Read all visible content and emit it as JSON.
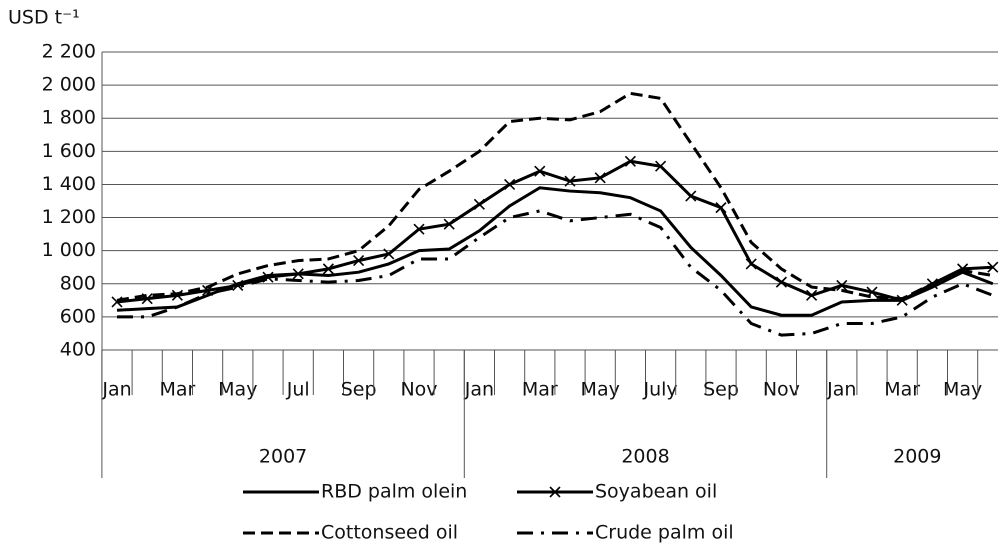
{
  "chart_data": {
    "type": "line",
    "y_label": "USD t⁻¹",
    "categories": [
      "Jan",
      null,
      "Mar",
      null,
      "May",
      null,
      "Jul",
      null,
      "Sep",
      null,
      "Nov",
      null,
      "Jan",
      null,
      "Mar",
      null,
      "May",
      null,
      "July",
      null,
      "Sep",
      null,
      "Nov",
      null,
      "Jan",
      null,
      "Mar",
      null,
      "May",
      null
    ],
    "year_groups": [
      {
        "label": "2007",
        "count": 12
      },
      {
        "label": "2008",
        "count": 12
      },
      {
        "label": "2009",
        "count": 6
      }
    ],
    "ylim": [
      400,
      2200
    ],
    "yticks": [
      {
        "value": 400,
        "label": "400"
      },
      {
        "value": 600,
        "label": "600"
      },
      {
        "value": 800,
        "label": "800"
      },
      {
        "value": 1000,
        "label": "1 000"
      },
      {
        "value": 1200,
        "label": "1 200"
      },
      {
        "value": 1400,
        "label": "1 400"
      },
      {
        "value": 1600,
        "label": "1 600"
      },
      {
        "value": 1800,
        "label": "1 800"
      },
      {
        "value": 2000,
        "label": "2 000"
      },
      {
        "value": 2200,
        "label": "2 200"
      }
    ],
    "grid": true,
    "series": [
      {
        "name": "RBD palm olein",
        "color": "#000000",
        "dash": "solid",
        "marker": "none",
        "values": [
          640,
          650,
          660,
          730,
          800,
          850,
          860,
          850,
          870,
          920,
          1000,
          1010,
          1120,
          1270,
          1380,
          1360,
          1350,
          1320,
          1240,
          1020,
          850,
          660,
          610,
          610,
          690,
          700,
          700,
          780,
          870,
          800
        ]
      },
      {
        "name": "Soyabean oil",
        "color": "#000000",
        "dash": "solid",
        "marker": "x",
        "values": [
          690,
          710,
          730,
          760,
          790,
          840,
          860,
          890,
          940,
          980,
          1130,
          1160,
          1280,
          1400,
          1480,
          1420,
          1440,
          1540,
          1510,
          1330,
          1260,
          920,
          810,
          730,
          790,
          750,
          700,
          800,
          890,
          900
        ]
      },
      {
        "name": "Cottonseed oil",
        "color": "#000000",
        "dash": "dashed",
        "marker": "none",
        "values": [
          700,
          730,
          740,
          780,
          860,
          910,
          940,
          950,
          1000,
          1150,
          1370,
          1480,
          1600,
          1780,
          1800,
          1790,
          1840,
          1950,
          1920,
          1650,
          1380,
          1050,
          890,
          780,
          760,
          720,
          710,
          800,
          880,
          850
        ]
      },
      {
        "name": "Crude palm oil",
        "color": "#000000",
        "dash": "dashdot",
        "marker": "none",
        "values": [
          600,
          600,
          660,
          740,
          780,
          830,
          820,
          810,
          820,
          850,
          950,
          950,
          1080,
          1200,
          1240,
          1180,
          1200,
          1220,
          1140,
          900,
          760,
          560,
          490,
          500,
          560,
          560,
          600,
          720,
          800,
          730
        ]
      }
    ]
  }
}
